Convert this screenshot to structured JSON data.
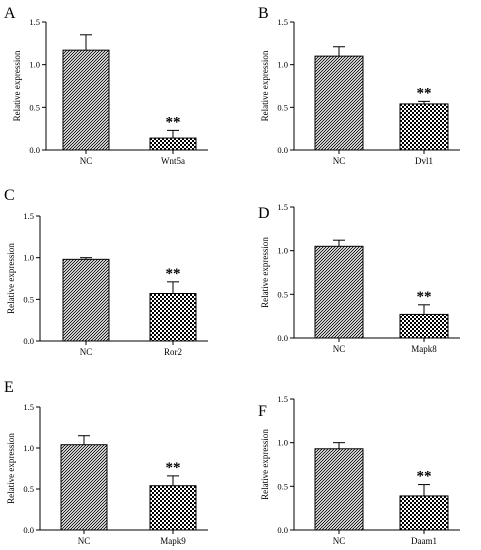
{
  "chart_data": [
    {
      "type": "bar",
      "panel": "A",
      "ylabel": "Relative expression",
      "categories": [
        "NC",
        "Wnt5a"
      ],
      "values": [
        1.17,
        0.14
      ],
      "errors": [
        0.18,
        0.09
      ],
      "significance": [
        "",
        "**"
      ],
      "patterns": [
        "hatch",
        "check"
      ],
      "ylim": [
        0,
        1.5
      ],
      "yticks": [
        "0.0",
        "0.5",
        "1.0",
        "1.5"
      ]
    },
    {
      "type": "bar",
      "panel": "B",
      "ylabel": "Relative expression",
      "categories": [
        "NC",
        "Dvl1"
      ],
      "values": [
        1.1,
        0.54
      ],
      "errors": [
        0.11,
        0.03
      ],
      "significance": [
        "",
        "**"
      ],
      "patterns": [
        "hatch",
        "check"
      ],
      "ylim": [
        0,
        1.5
      ],
      "yticks": [
        "0.0",
        "0.5",
        "1.0",
        "1.5"
      ]
    },
    {
      "type": "bar",
      "panel": "C",
      "ylabel": "Relative expression",
      "categories": [
        "NC",
        "Ror2"
      ],
      "values": [
        0.98,
        0.57
      ],
      "errors": [
        0.02,
        0.14
      ],
      "significance": [
        "",
        "**"
      ],
      "patterns": [
        "hatch",
        "check"
      ],
      "ylim": [
        0,
        1.5
      ],
      "yticks": [
        "0.0",
        "0.5",
        "1.0",
        "1.5"
      ]
    },
    {
      "type": "bar",
      "panel": "D",
      "ylabel": "Relative expression",
      "categories": [
        "NC",
        "Mapk8"
      ],
      "values": [
        1.05,
        0.27
      ],
      "errors": [
        0.07,
        0.11
      ],
      "significance": [
        "",
        "**"
      ],
      "patterns": [
        "hatch",
        "check"
      ],
      "ylim": [
        0,
        1.5
      ],
      "yticks": [
        "0.0",
        "0.5",
        "1.0",
        "1.5"
      ]
    },
    {
      "type": "bar",
      "panel": "E",
      "ylabel": "Relative expression",
      "categories": [
        "NC",
        "Mapk9"
      ],
      "values": [
        1.04,
        0.54
      ],
      "errors": [
        0.11,
        0.12
      ],
      "significance": [
        "",
        "**"
      ],
      "patterns": [
        "hatch",
        "check"
      ],
      "ylim": [
        0,
        1.5
      ],
      "yticks": [
        "0.0",
        "0.5",
        "1.0",
        "1.5"
      ]
    },
    {
      "type": "bar",
      "panel": "F",
      "ylabel": "Relative expression",
      "categories": [
        "NC",
        "Daam1"
      ],
      "values": [
        0.93,
        0.39
      ],
      "errors": [
        0.07,
        0.13
      ],
      "significance": [
        "",
        "**"
      ],
      "patterns": [
        "hatch",
        "check"
      ],
      "ylim": [
        0,
        1.5
      ],
      "yticks": [
        "0.0",
        "0.5",
        "1.0",
        "1.5"
      ]
    }
  ],
  "colors": {
    "ink": "#000000",
    "background": "#ffffff"
  }
}
